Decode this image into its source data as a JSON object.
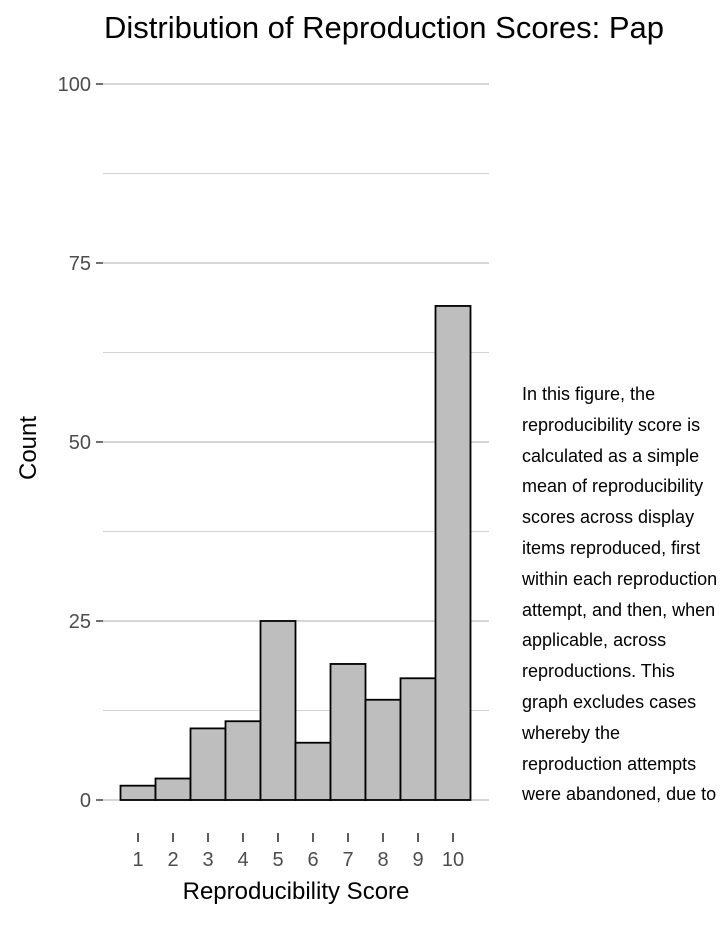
{
  "chart_data": {
    "type": "bar",
    "title": "Distribution of Reproduction Scores: Pap",
    "xlabel": "Reproducibility Score",
    "ylabel": "Count",
    "categories": [
      "1",
      "2",
      "3",
      "4",
      "5",
      "6",
      "7",
      "8",
      "9",
      "10"
    ],
    "values": [
      2,
      3,
      10,
      11,
      25,
      8,
      19,
      14,
      17,
      69
    ],
    "ylim": [
      0,
      100
    ],
    "yticks": [
      0,
      25,
      50,
      75,
      100
    ],
    "grid": true,
    "colors": {
      "bar_fill": "#bebebe",
      "bar_stroke": "#000000",
      "grid_major": "#bebebe",
      "grid_minor": "#d3d3d3",
      "tick_label": "#4d4d4d"
    }
  },
  "caption": "In this figure, the reproducibility score is calculated as a simple mean of reproducibility scores across display items reproduced, first within each reproduction attempt, and then, when applicable, across reproductions. This graph excludes cases whereby the reproduction attempts were abandoned, due to"
}
